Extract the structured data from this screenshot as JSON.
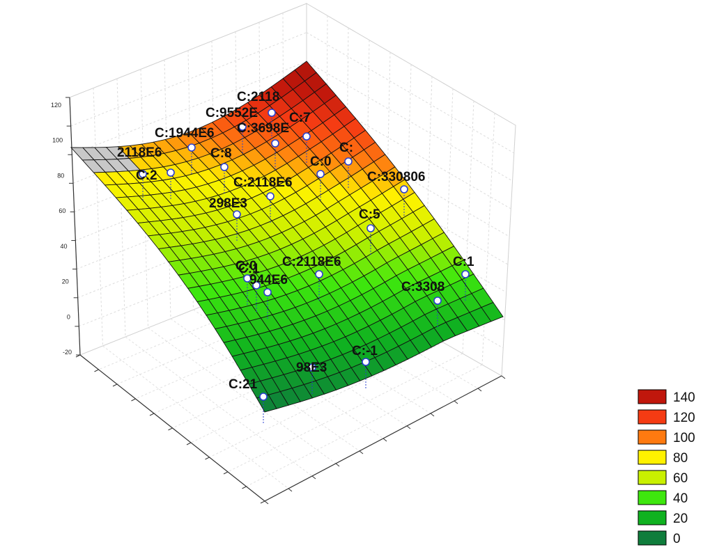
{
  "chart_data": {
    "type": "surface3d",
    "title": "",
    "surface_grid": {
      "rows": 20,
      "cols": 20
    },
    "z_ticks": [
      "120",
      "100",
      "80",
      "60",
      "40",
      "20",
      "0",
      "-20"
    ],
    "legend": {
      "entries": [
        {
          "label": "140",
          "color": "#c0170c"
        },
        {
          "label": "120",
          "color": "#f53b13"
        },
        {
          "label": "100",
          "color": "#ff7a10"
        },
        {
          "label": "80",
          "color": "#fff200"
        },
        {
          "label": "60",
          "color": "#c9f000"
        },
        {
          "label": "40",
          "color": "#3ee70e"
        },
        {
          "label": "20",
          "color": "#10b220"
        },
        {
          "label": "0",
          "color": "#0f7d3c"
        }
      ]
    },
    "point_labels": [
      "C:2118",
      "C:9552E",
      "C:7",
      "C:1944E6",
      "C:3698E",
      "2118E6",
      "C:8",
      "C:2",
      "C:0",
      "C:",
      "C:2118E6",
      "C:330806",
      "298E3",
      "C:5",
      "C:0",
      "C:1",
      "944E6",
      "C:2118E6",
      "C:1",
      "C:3308",
      "C:-1",
      "98E3",
      "C:21"
    ]
  }
}
